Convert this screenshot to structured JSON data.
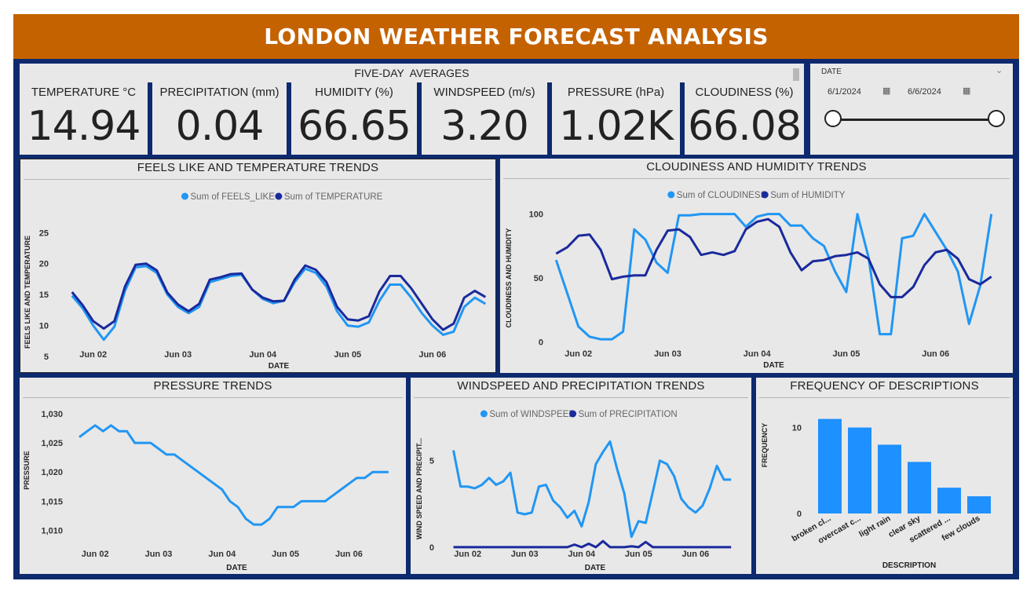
{
  "header": {
    "title": "LONDON WEATHER FORECAST ANALYSIS"
  },
  "averages": {
    "title": "FIVE-DAY  AVERAGES",
    "cards": [
      {
        "label": "TEMPERATURE °C",
        "value": "14.94"
      },
      {
        "label": "PRECIPITATION (mm)",
        "value": "0.04"
      },
      {
        "label": "HUMIDITY (%)",
        "value": "66.65"
      },
      {
        "label": "WINDSPEED (m/s)",
        "value": "3.20"
      },
      {
        "label": "PRESSURE (hPa)",
        "value": "1.02K"
      },
      {
        "label": "CLOUDINESS (%)",
        "value": "66.08"
      }
    ]
  },
  "date_slicer": {
    "label": "DATE",
    "start": "6/1/2024",
    "end": "6/6/2024",
    "range_fraction": [
      0,
      1
    ]
  },
  "colors": {
    "light": "#2196f3",
    "dark": "#1a2a9c",
    "bar": "#1e90ff",
    "header": "#c56200",
    "frame": "#0d2a6e"
  },
  "chart_data": [
    {
      "id": "feels",
      "type": "line",
      "title": "FEELS LIKE AND TEMPERATURE TRENDS",
      "xlabel": "DATE",
      "ylabel": "FEELS LIKE AND TEMPERATURE",
      "xticks": [
        {
          "pos": 2,
          "label": "Jun 02"
        },
        {
          "pos": 10,
          "label": "Jun 03"
        },
        {
          "pos": 18,
          "label": "Jun 04"
        },
        {
          "pos": 26,
          "label": "Jun 05"
        },
        {
          "pos": 34,
          "label": "Jun 06"
        }
      ],
      "yticks": [
        {
          "v": 5,
          "label": "5"
        },
        {
          "v": 10,
          "label": "10"
        },
        {
          "v": 15,
          "label": "15"
        },
        {
          "v": 20,
          "label": "20"
        },
        {
          "v": 25,
          "label": "25"
        }
      ],
      "xlim": [
        -0.2,
        39.2
      ],
      "ylim": [
        3.6,
        27.2
      ],
      "series": [
        {
          "name": "Sum of FEELS_LIKE",
          "color": "#2196f3",
          "values": [
            14.8,
            12.8,
            10.0,
            7.7,
            9.8,
            15.6,
            19.4,
            19.6,
            18.5,
            15.0,
            13.0,
            12.0,
            13.0,
            17.0,
            17.5,
            18.0,
            18.2,
            15.8,
            14.3,
            13.6,
            14.0,
            17.0,
            19.2,
            18.5,
            16.3,
            12.3,
            10.0,
            9.8,
            10.5,
            14.0,
            16.6,
            16.6,
            14.5,
            12.0,
            10.0,
            8.5,
            9.0,
            13.0,
            14.5,
            13.5
          ]
        },
        {
          "name": "Sum of TEMPERATURE",
          "color": "#1a2a9c",
          "values": [
            15.4,
            13.3,
            10.7,
            9.5,
            10.7,
            16.3,
            19.8,
            20.0,
            18.9,
            15.3,
            13.4,
            12.3,
            13.5,
            17.4,
            17.8,
            18.3,
            18.4,
            15.8,
            14.5,
            13.9,
            14.0,
            17.4,
            19.7,
            19.0,
            17.0,
            13.0,
            11.0,
            10.8,
            11.5,
            15.5,
            18.0,
            18.0,
            16.0,
            13.5,
            11.0,
            9.3,
            10.3,
            14.5,
            15.6,
            14.6
          ]
        }
      ]
    },
    {
      "id": "cloud",
      "type": "line",
      "title": "CLOUDINESS AND HUMIDITY TRENDS",
      "xlabel": "DATE",
      "ylabel": "CLOUDINESS AND HUMIDITY",
      "xticks": [
        {
          "pos": 2,
          "label": "Jun 02"
        },
        {
          "pos": 10,
          "label": "Jun 03"
        },
        {
          "pos": 18,
          "label": "Jun 04"
        },
        {
          "pos": 26,
          "label": "Jun 05"
        },
        {
          "pos": 34,
          "label": "Jun 06"
        }
      ],
      "yticks": [
        {
          "v": 0,
          "label": "0"
        },
        {
          "v": 50,
          "label": "50"
        },
        {
          "v": 100,
          "label": "100"
        }
      ],
      "xlim": [
        -0.3,
        39.3
      ],
      "ylim": [
        -1.6,
        101.6
      ],
      "series": [
        {
          "name": "Sum of CLOUDINESS",
          "color": "#2196f3",
          "values": [
            64,
            38,
            12,
            4,
            2,
            2,
            8,
            88,
            80,
            62,
            54,
            99,
            99,
            100,
            100,
            100,
            100,
            90,
            98,
            100,
            100,
            91,
            91,
            81,
            75,
            55,
            39,
            100,
            66,
            6,
            6,
            81,
            83,
            100,
            86,
            72,
            55,
            14,
            44,
            100
          ]
        },
        {
          "name": "Sum of HUMIDITY",
          "color": "#1a2a9c",
          "values": [
            69,
            74,
            83,
            84,
            72,
            49,
            51,
            52,
            52,
            72,
            87,
            88,
            82,
            68,
            70,
            68,
            71,
            88,
            94,
            96,
            90,
            70,
            56,
            63,
            64,
            67,
            68,
            70,
            65,
            45,
            35,
            35,
            43,
            60,
            70,
            72,
            65,
            49,
            45,
            51
          ]
        }
      ]
    },
    {
      "id": "pressure",
      "type": "line",
      "title": "PRESSURE TRENDS",
      "xlabel": "DATE",
      "ylabel": "PRESSURE",
      "xticks": [
        {
          "pos": 2,
          "label": "Jun 02"
        },
        {
          "pos": 10,
          "label": "Jun 03"
        },
        {
          "pos": 18,
          "label": "Jun 04"
        },
        {
          "pos": 26,
          "label": "Jun 05"
        },
        {
          "pos": 34,
          "label": "Jun 06"
        }
      ],
      "yticks": [
        {
          "v": 1010,
          "label": "1,010"
        },
        {
          "v": 1015,
          "label": "1,015"
        },
        {
          "v": 1020,
          "label": "1,020"
        },
        {
          "v": 1025,
          "label": "1,025"
        },
        {
          "v": 1030,
          "label": "1,030"
        }
      ],
      "xlim": [
        -0.3,
        40.0
      ],
      "ylim": [
        1009.8,
        1030.8
      ],
      "series": [
        {
          "name": "PRESSURE",
          "color": "#2196f3",
          "values": [
            1026,
            1027,
            1028,
            1027,
            1028,
            1027,
            1027,
            1025,
            1025,
            1025,
            1024,
            1023,
            1023,
            1022,
            1021,
            1020,
            1019,
            1018,
            1017,
            1015,
            1014,
            1012,
            1011,
            1011,
            1012,
            1014,
            1014,
            1014,
            1015,
            1015,
            1015,
            1015,
            1016,
            1017,
            1018,
            1019,
            1019,
            1020,
            1020,
            1020
          ]
        }
      ]
    },
    {
      "id": "wind",
      "type": "line",
      "title": "WINDSPEED AND PRECIPITATION TRENDS",
      "xlabel": "DATE",
      "ylabel": "WIND SPEED AND PRECIPIT...",
      "xticks": [
        {
          "pos": 2,
          "label": "Jun 02"
        },
        {
          "pos": 10,
          "label": "Jun 03"
        },
        {
          "pos": 18,
          "label": "Jun 04"
        },
        {
          "pos": 26,
          "label": "Jun 05"
        },
        {
          "pos": 34,
          "label": "Jun 06"
        }
      ],
      "yticks": [
        {
          "v": 0,
          "label": "0"
        },
        {
          "v": 5,
          "label": "5"
        }
      ],
      "xlim": [
        -0.5,
        40.3
      ],
      "ylim": [
        -0.05,
        6.8
      ],
      "series": [
        {
          "name": "Sum of WINDSPEED",
          "color": "#2196f3",
          "values": [
            5.6,
            3.5,
            3.5,
            3.4,
            3.6,
            4.0,
            3.6,
            3.8,
            4.3,
            2.0,
            1.9,
            2.0,
            3.5,
            3.6,
            2.7,
            2.3,
            1.7,
            2.1,
            1.2,
            2.6,
            4.8,
            5.5,
            6.1,
            4.5,
            3.1,
            0.6,
            1.5,
            1.4,
            3.2,
            5.0,
            4.8,
            4.1,
            2.8,
            2.3,
            2.0,
            2.4,
            3.4,
            4.7,
            3.9,
            3.9
          ]
        },
        {
          "name": "Sum of PRECIPITATION",
          "color": "#1a2a9c",
          "values": [
            0,
            0,
            0,
            0,
            0,
            0,
            0,
            0,
            0,
            0,
            0,
            0,
            0,
            0,
            0,
            0,
            0,
            0.15,
            0,
            0.2,
            0,
            0.35,
            0,
            0,
            0,
            0.05,
            0,
            0.3,
            0,
            0,
            0,
            0,
            0,
            0,
            0,
            0,
            0,
            0,
            0,
            0
          ]
        }
      ]
    },
    {
      "id": "freq",
      "type": "bar",
      "title": "FREQUENCY OF DESCRIPTIONS",
      "xlabel": "DESCRIPTION",
      "ylabel": "FREQUENCY",
      "categories": [
        "broken cl...",
        "overcast c...",
        "light rain",
        "clear sky",
        "scattered ...",
        "few clouds"
      ],
      "values": [
        11,
        10,
        8,
        6,
        3,
        2
      ],
      "yticks": [
        {
          "v": 0,
          "label": "0"
        },
        {
          "v": 10,
          "label": "10"
        }
      ],
      "ylim": [
        0,
        11.6
      ]
    }
  ]
}
